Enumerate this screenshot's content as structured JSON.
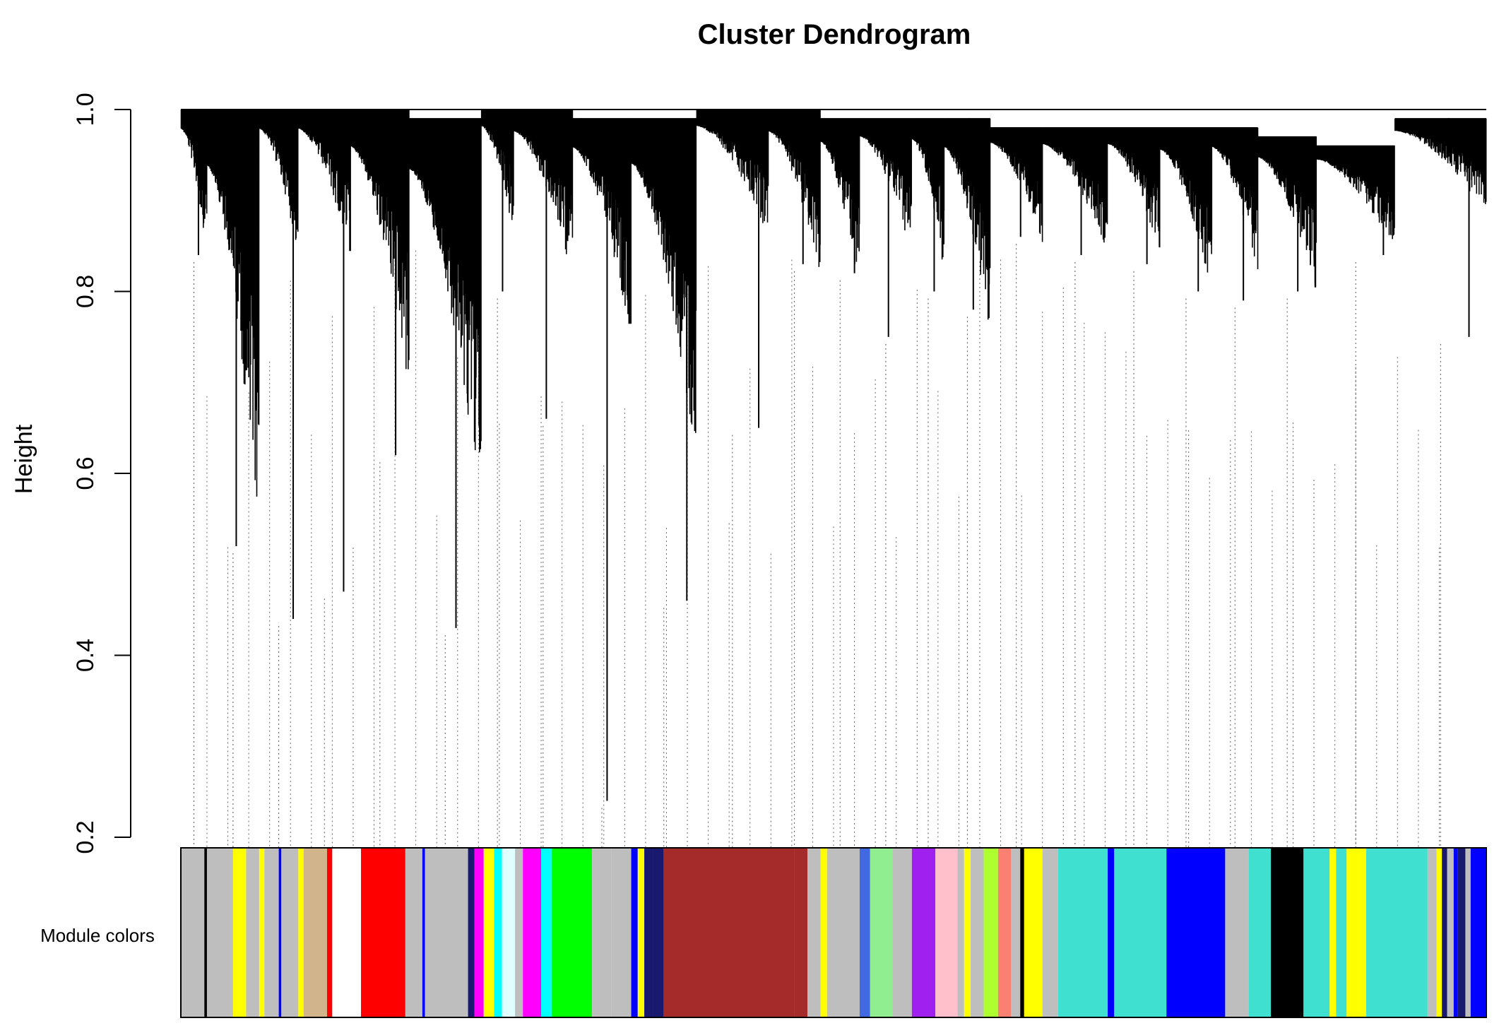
{
  "chart_data": {
    "type": "dendrogram",
    "title": "Cluster Dendrogram",
    "xlabel": "",
    "ylabel": "Height",
    "ylim": [
      0.2,
      1.0
    ],
    "yticks": [
      0.2,
      0.4,
      0.6,
      0.8,
      1.0
    ],
    "ytick_labels": [
      "0.2",
      "0.4",
      "0.6",
      "0.8",
      "1.0"
    ],
    "color_bar_label": "Module colors",
    "root_height": 1.0,
    "clusters": [
      {
        "start": 0.0,
        "end": 0.02,
        "top": 1.0,
        "min": 0.86,
        "dip": 0.84
      },
      {
        "start": 0.02,
        "end": 0.06,
        "top": 1.0,
        "min": 0.59,
        "dip": 0.52
      },
      {
        "start": 0.06,
        "end": 0.09,
        "top": 1.0,
        "min": 0.86,
        "dip": 0.44
      },
      {
        "start": 0.09,
        "end": 0.13,
        "top": 1.0,
        "min": 0.86,
        "dip": 0.47
      },
      {
        "start": 0.13,
        "end": 0.175,
        "top": 1.0,
        "min": 0.73,
        "dip": 0.62
      },
      {
        "start": 0.175,
        "end": 0.23,
        "top": 0.99,
        "min": 0.62,
        "dip": 0.43
      },
      {
        "start": 0.23,
        "end": 0.255,
        "top": 1.0,
        "min": 0.88,
        "dip": 0.8
      },
      {
        "start": 0.255,
        "end": 0.3,
        "top": 1.0,
        "min": 0.84,
        "dip": 0.66
      },
      {
        "start": 0.3,
        "end": 0.345,
        "top": 0.99,
        "min": 0.78,
        "dip": 0.24
      },
      {
        "start": 0.345,
        "end": 0.395,
        "top": 0.99,
        "min": 0.66,
        "dip": 0.46
      },
      {
        "start": 0.395,
        "end": 0.45,
        "top": 1.0,
        "min": 0.88,
        "dip": 0.65
      },
      {
        "start": 0.45,
        "end": 0.49,
        "top": 1.0,
        "min": 0.84,
        "dip": 0.83
      },
      {
        "start": 0.49,
        "end": 0.52,
        "top": 0.99,
        "min": 0.82,
        "dip": 0.82
      },
      {
        "start": 0.52,
        "end": 0.56,
        "top": 0.99,
        "min": 0.86,
        "dip": 0.75
      },
      {
        "start": 0.56,
        "end": 0.585,
        "top": 0.99,
        "min": 0.84,
        "dip": 0.8
      },
      {
        "start": 0.585,
        "end": 0.62,
        "top": 0.99,
        "min": 0.78,
        "dip": 0.78
      },
      {
        "start": 0.62,
        "end": 0.66,
        "top": 0.98,
        "min": 0.87,
        "dip": 0.86
      },
      {
        "start": 0.66,
        "end": 0.71,
        "top": 0.98,
        "min": 0.86,
        "dip": 0.84
      },
      {
        "start": 0.71,
        "end": 0.75,
        "top": 0.98,
        "min": 0.86,
        "dip": 0.83
      },
      {
        "start": 0.75,
        "end": 0.79,
        "top": 0.98,
        "min": 0.82,
        "dip": 0.8
      },
      {
        "start": 0.79,
        "end": 0.825,
        "top": 0.98,
        "min": 0.84,
        "dip": 0.79
      },
      {
        "start": 0.825,
        "end": 0.87,
        "top": 0.97,
        "min": 0.82,
        "dip": 0.8
      },
      {
        "start": 0.87,
        "end": 0.93,
        "top": 0.96,
        "min": 0.86,
        "dip": 0.84
      },
      {
        "start": 0.93,
        "end": 1.0,
        "top": 0.99,
        "min": 0.9,
        "dip": 0.75
      }
    ],
    "module_color_bands": [
      {
        "start": 0.0,
        "end": 0.018,
        "color": "#bebebe"
      },
      {
        "start": 0.018,
        "end": 0.02,
        "color": "#000000"
      },
      {
        "start": 0.02,
        "end": 0.04,
        "color": "#bebebe"
      },
      {
        "start": 0.04,
        "end": 0.05,
        "color": "#ffff00"
      },
      {
        "start": 0.05,
        "end": 0.06,
        "color": "#bebebe"
      },
      {
        "start": 0.06,
        "end": 0.064,
        "color": "#ffff00"
      },
      {
        "start": 0.064,
        "end": 0.075,
        "color": "#bebebe"
      },
      {
        "start": 0.075,
        "end": 0.077,
        "color": "#0000ff"
      },
      {
        "start": 0.077,
        "end": 0.09,
        "color": "#bebebe"
      },
      {
        "start": 0.09,
        "end": 0.094,
        "color": "#ffff00"
      },
      {
        "start": 0.094,
        "end": 0.112,
        "color": "#d2b48c"
      },
      {
        "start": 0.112,
        "end": 0.116,
        "color": "#ff0000"
      },
      {
        "start": 0.116,
        "end": 0.122,
        "color": "#ffffff"
      },
      {
        "start": 0.122,
        "end": 0.138,
        "color": "#ffffff"
      },
      {
        "start": 0.138,
        "end": 0.172,
        "color": "#ff0000"
      },
      {
        "start": 0.172,
        "end": 0.185,
        "color": "#bebebe"
      },
      {
        "start": 0.185,
        "end": 0.187,
        "color": "#0000ff"
      },
      {
        "start": 0.187,
        "end": 0.22,
        "color": "#bebebe"
      },
      {
        "start": 0.22,
        "end": 0.225,
        "color": "#191970"
      },
      {
        "start": 0.225,
        "end": 0.232,
        "color": "#ff00ff"
      },
      {
        "start": 0.232,
        "end": 0.24,
        "color": "#ffff00"
      },
      {
        "start": 0.24,
        "end": 0.246,
        "color": "#00ffff"
      },
      {
        "start": 0.246,
        "end": 0.256,
        "color": "#e0ffff"
      },
      {
        "start": 0.256,
        "end": 0.262,
        "color": "#bebebe"
      },
      {
        "start": 0.262,
        "end": 0.276,
        "color": "#ff00ff"
      },
      {
        "start": 0.276,
        "end": 0.284,
        "color": "#00ffff"
      },
      {
        "start": 0.284,
        "end": 0.315,
        "color": "#00ff00"
      },
      {
        "start": 0.315,
        "end": 0.33,
        "color": "#bebebe"
      },
      {
        "start": 0.33,
        "end": 0.345,
        "color": "#bebebe"
      },
      {
        "start": 0.345,
        "end": 0.35,
        "color": "#0000ff"
      },
      {
        "start": 0.35,
        "end": 0.355,
        "color": "#ffff00"
      },
      {
        "start": 0.355,
        "end": 0.362,
        "color": "#191970"
      },
      {
        "start": 0.362,
        "end": 0.37,
        "color": "#191970"
      },
      {
        "start": 0.37,
        "end": 0.47,
        "color": "#a52a2a"
      },
      {
        "start": 0.47,
        "end": 0.48,
        "color": "#a52a2a"
      },
      {
        "start": 0.48,
        "end": 0.49,
        "color": "#bebebe"
      },
      {
        "start": 0.49,
        "end": 0.495,
        "color": "#ffff00"
      },
      {
        "start": 0.495,
        "end": 0.52,
        "color": "#bebebe"
      },
      {
        "start": 0.52,
        "end": 0.528,
        "color": "#4169e1"
      },
      {
        "start": 0.528,
        "end": 0.545,
        "color": "#90ee90"
      },
      {
        "start": 0.545,
        "end": 0.56,
        "color": "#bebebe"
      },
      {
        "start": 0.56,
        "end": 0.578,
        "color": "#a020f0"
      },
      {
        "start": 0.578,
        "end": 0.595,
        "color": "#ffc0cb"
      },
      {
        "start": 0.595,
        "end": 0.6,
        "color": "#bebebe"
      },
      {
        "start": 0.6,
        "end": 0.605,
        "color": "#ffff00"
      },
      {
        "start": 0.605,
        "end": 0.615,
        "color": "#bebebe"
      },
      {
        "start": 0.615,
        "end": 0.626,
        "color": "#adff2f"
      },
      {
        "start": 0.626,
        "end": 0.636,
        "color": "#fa8072"
      },
      {
        "start": 0.636,
        "end": 0.643,
        "color": "#bebebe"
      },
      {
        "start": 0.643,
        "end": 0.646,
        "color": "#000000"
      },
      {
        "start": 0.646,
        "end": 0.66,
        "color": "#ffff00"
      },
      {
        "start": 0.66,
        "end": 0.672,
        "color": "#bebebe"
      },
      {
        "start": 0.672,
        "end": 0.71,
        "color": "#40e0d0"
      },
      {
        "start": 0.71,
        "end": 0.715,
        "color": "#0000ff"
      },
      {
        "start": 0.715,
        "end": 0.755,
        "color": "#40e0d0"
      },
      {
        "start": 0.755,
        "end": 0.8,
        "color": "#0000ff"
      },
      {
        "start": 0.8,
        "end": 0.818,
        "color": "#bebebe"
      },
      {
        "start": 0.818,
        "end": 0.835,
        "color": "#40e0d0"
      },
      {
        "start": 0.835,
        "end": 0.86,
        "color": "#000000"
      },
      {
        "start": 0.86,
        "end": 0.88,
        "color": "#40e0d0"
      },
      {
        "start": 0.88,
        "end": 0.885,
        "color": "#ffff00"
      },
      {
        "start": 0.885,
        "end": 0.893,
        "color": "#40e0d0"
      },
      {
        "start": 0.893,
        "end": 0.908,
        "color": "#ffff00"
      },
      {
        "start": 0.908,
        "end": 0.955,
        "color": "#40e0d0"
      },
      {
        "start": 0.955,
        "end": 0.962,
        "color": "#bebebe"
      },
      {
        "start": 0.962,
        "end": 0.966,
        "color": "#ffff00"
      },
      {
        "start": 0.966,
        "end": 0.97,
        "color": "#191970"
      },
      {
        "start": 0.97,
        "end": 0.975,
        "color": "#bebebe"
      },
      {
        "start": 0.975,
        "end": 0.978,
        "color": "#0000ff"
      },
      {
        "start": 0.978,
        "end": 0.984,
        "color": "#191970"
      },
      {
        "start": 0.984,
        "end": 0.988,
        "color": "#bebebe"
      },
      {
        "start": 0.988,
        "end": 1.0,
        "color": "#0000ff"
      }
    ]
  }
}
